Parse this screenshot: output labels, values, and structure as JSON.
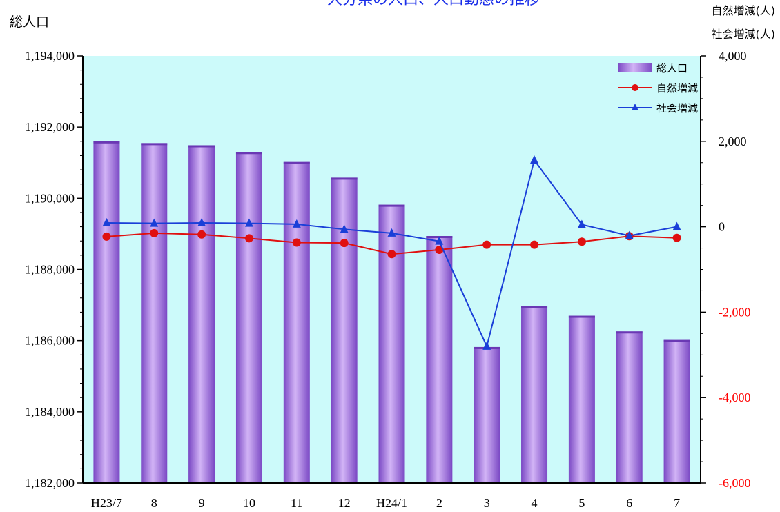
{
  "chart_data": {
    "type": "bar",
    "title": "大分県の人口、人口動態の推移",
    "y_left_label": "総人口",
    "y_right_label_1": "自然増減(人)",
    "y_right_label_2": "社会増減(人)",
    "categories": [
      "H23/7",
      "8",
      "9",
      "10",
      "11",
      "12",
      "H24/1",
      "2",
      "3",
      "4",
      "5",
      "6",
      "7"
    ],
    "y_left_lim": [
      1182000,
      1194000
    ],
    "y_left_ticks": [
      1182000,
      1184000,
      1186000,
      1188000,
      1190000,
      1192000,
      1194000
    ],
    "y_left_tick_labels": [
      "1,182,000",
      "1,184,000",
      "1,186,000",
      "1,188,000",
      "1,190,000",
      "1,192,000",
      "1,194,000"
    ],
    "y_right_lim": [
      -6000,
      4000
    ],
    "y_right_ticks": [
      -6000,
      -4000,
      -2000,
      0,
      2000,
      4000
    ],
    "y_right_tick_labels": [
      "-6,000",
      "-4,000",
      "-2,000",
      "0",
      "2,000",
      "4,000"
    ],
    "y_right_negative_color": "#ff0000",
    "plot_background": "#ccfafa",
    "legend_position": "top-right",
    "series": [
      {
        "name": "総人口",
        "type": "bar",
        "axis": "left",
        "color": "#a070e0",
        "values": [
          1191600,
          1191550,
          1191490,
          1191300,
          1191020,
          1190580,
          1189820,
          1188940,
          1185820,
          1186980,
          1186700,
          1186260,
          1186020
        ]
      },
      {
        "name": "自然増減",
        "type": "line",
        "axis": "right",
        "color": "#e01010",
        "marker": "circle",
        "values": [
          -230,
          -150,
          -180,
          -270,
          -370,
          -380,
          -640,
          -540,
          -420,
          -420,
          -350,
          -220,
          -260
        ]
      },
      {
        "name": "社会増減",
        "type": "line",
        "axis": "right",
        "color": "#1a3fd8",
        "marker": "triangle",
        "values": [
          90,
          80,
          90,
          80,
          60,
          -60,
          -150,
          -340,
          -2800,
          1560,
          50,
          -210,
          0
        ]
      }
    ]
  }
}
